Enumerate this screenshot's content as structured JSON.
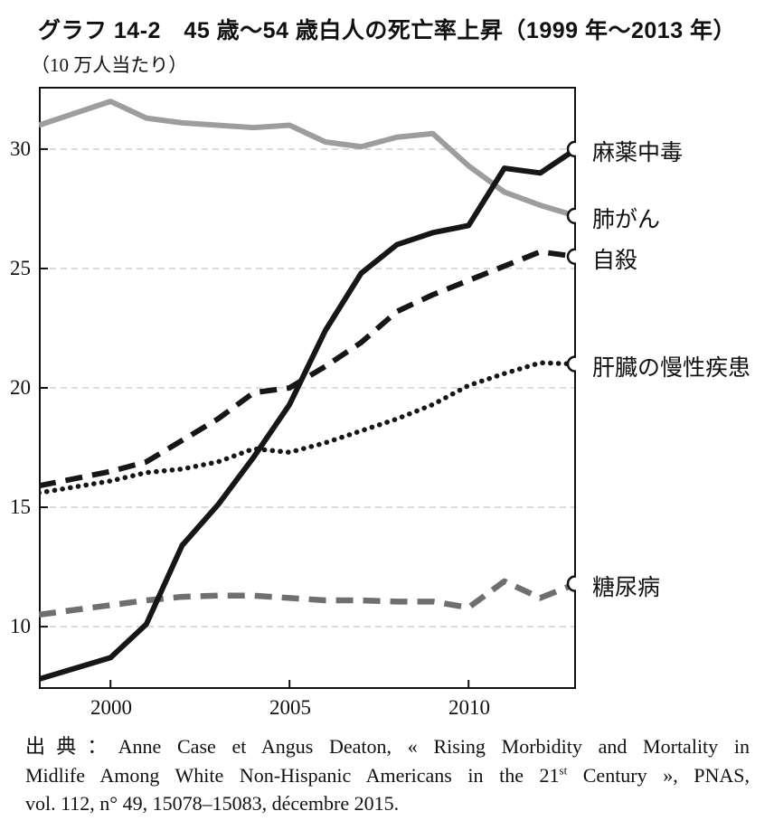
{
  "title": "グラフ 14-2　45 歳〜54 歳白人の死亡率上昇（1999 年〜2013 年）",
  "unit_label": "（10 万人当たり）",
  "source": {
    "line1": "出典：Anne Case et Angus Deaton, « Rising Morbidity and Mortality in",
    "line2a": "Midlife Among White Non-Hispanic Americans in the 21",
    "line2sup": "st",
    "line2b": " Century », PNAS,",
    "line3": "vol. 112, n° 49, 15078–15083, décembre 2015."
  },
  "chart_data": {
    "type": "line",
    "title": "グラフ 14-2　45 歳〜54 歳白人の死亡率上昇（1999 年〜2013 年）",
    "ylabel": "（10 万人当たり）",
    "x": [
      1999,
      2000,
      2001,
      2002,
      2003,
      2004,
      2005,
      2006,
      2007,
      2008,
      2009,
      2010,
      2011,
      2012,
      2013
    ],
    "x_axis_range": [
      1998,
      2013
    ],
    "xticks": [
      "2000",
      "2005",
      "2010"
    ],
    "xtick_years": [
      2000,
      2005,
      2010
    ],
    "yticks": [
      30,
      25,
      20,
      15,
      10
    ],
    "ylim": [
      7.39,
      32.61
    ],
    "grid": true,
    "grid_color": "#c9c9c9",
    "axis_color": "#111111",
    "legend_position": "right-of-plot, at line endpoints with open circle markers",
    "series": [
      {
        "label": "肺がん",
        "color": "#9d9d9d",
        "style": "solid",
        "width": 6,
        "values": [
          31.0,
          32.0,
          31.3,
          31.1,
          31.0,
          30.9,
          31.0,
          30.3,
          30.1,
          30.5,
          30.65,
          29.3,
          28.2,
          27.65,
          27.2
        ]
      },
      {
        "label": "糖尿病",
        "color": "#6f6f6f",
        "style": "dashed",
        "width": 6.5,
        "values": [
          10.5,
          10.9,
          11.1,
          11.25,
          11.3,
          11.3,
          11.2,
          11.1,
          11.1,
          11.05,
          11.05,
          10.8,
          11.9,
          11.2,
          11.8
        ]
      },
      {
        "label": "肝臓の慢性疾患",
        "color": "#161616",
        "style": "dotted",
        "width": 5.5,
        "values": [
          15.6,
          16.1,
          16.45,
          16.6,
          16.9,
          17.45,
          17.3,
          17.7,
          18.2,
          18.7,
          19.3,
          20.1,
          20.6,
          21.05,
          21.0
        ]
      },
      {
        "label": "自殺",
        "color": "#161616",
        "style": "dashed",
        "width": 6,
        "values": [
          15.9,
          16.5,
          16.9,
          17.8,
          18.7,
          19.8,
          20.0,
          20.9,
          21.9,
          23.2,
          23.9,
          24.5,
          25.1,
          25.7,
          25.5
        ]
      },
      {
        "label": "麻薬中毒",
        "color": "#161616",
        "style": "solid",
        "width": 6,
        "values": [
          7.8,
          8.7,
          10.1,
          13.4,
          15.1,
          17.1,
          19.3,
          22.4,
          24.8,
          26.0,
          26.5,
          26.8,
          29.2,
          29.0,
          30.0
        ]
      }
    ],
    "endpoint_marker": {
      "shape": "open-circle",
      "radius": 8,
      "fill": "#ffffff",
      "stroke": "#111111"
    }
  }
}
